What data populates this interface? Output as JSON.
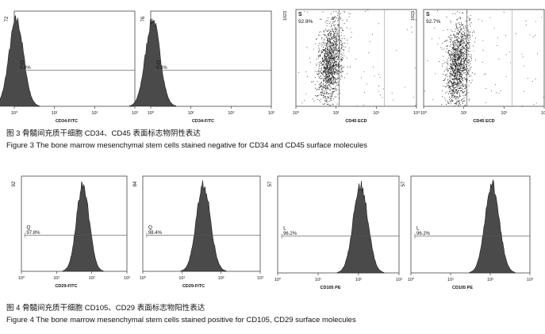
{
  "figure3": {
    "caption_cn": "图 3   骨髓间充质干细胞 CD34、CD45 表面标志物阴性表达",
    "caption_en": "Figure 3    The bone marrow mesenchymal stem cells stained negative for CD34 and CD45 surface molecules",
    "panels": [
      {
        "type": "histogram",
        "ymax": "72",
        "gate": "Q",
        "percent": "0.4%",
        "xlabel": "CD34-FITC",
        "peak_decade": 0.05,
        "ticks": [
          "10⁰",
          "10¹",
          "10²",
          "10³"
        ]
      },
      {
        "type": "histogram",
        "ymax": "76",
        "gate": "Q",
        "percent": "0.3%",
        "xlabel": "CD34-FITC",
        "peak_decade": 0.05,
        "ticks": [
          "10⁰",
          "10¹",
          "10²",
          "10³"
        ]
      },
      {
        "type": "scatter",
        "ymax": "1023",
        "gate": "S",
        "percent": "92.9%",
        "xlabel": "CD45 ECD",
        "ticks": [
          "10⁰",
          "10¹",
          "10²",
          "10³"
        ]
      },
      {
        "type": "scatter",
        "ymax": "1023",
        "gate": "S",
        "percent": "92.7%",
        "xlabel": "CD45 ECD",
        "ticks": [
          "10⁰",
          "10¹",
          "10²",
          "10³"
        ]
      }
    ]
  },
  "figure4": {
    "caption_cn": "图 4   骨髓间充质干细胞 CD105、CD29 表面标志物阳性表达",
    "caption_en": "Figure 4    The bone marrow mesenchymal stem cells stained positive for CD105, CD29 surface molecules",
    "panels": [
      {
        "type": "histogram",
        "ymax": "92",
        "gate": "Q",
        "percent": "97.8%",
        "xlabel": "CD29-FITC",
        "peak_decade": 1.75,
        "ticks": [
          "10⁰",
          "10¹",
          "10²",
          "10³"
        ]
      },
      {
        "type": "histogram",
        "ymax": "84",
        "gate": "Q",
        "percent": "98.4%",
        "xlabel": "CD29-FITC",
        "peak_decade": 1.55,
        "ticks": [
          "10⁰",
          "10¹",
          "10²",
          "10³"
        ]
      },
      {
        "type": "histogram",
        "ymax": "57",
        "gate": "L",
        "percent": "96.2%",
        "xlabel": "CD105 PE",
        "peak_decade": 2.05,
        "ticks": [
          "10⁰",
          "10¹",
          "10²",
          "10³"
        ]
      },
      {
        "type": "histogram",
        "ymax": "57",
        "gate": "L",
        "percent": "96.2%",
        "xlabel": "CD105 PE",
        "peak_decade": 2.05,
        "ticks": [
          "10⁰",
          "10¹",
          "10²",
          "10³"
        ]
      }
    ]
  }
}
